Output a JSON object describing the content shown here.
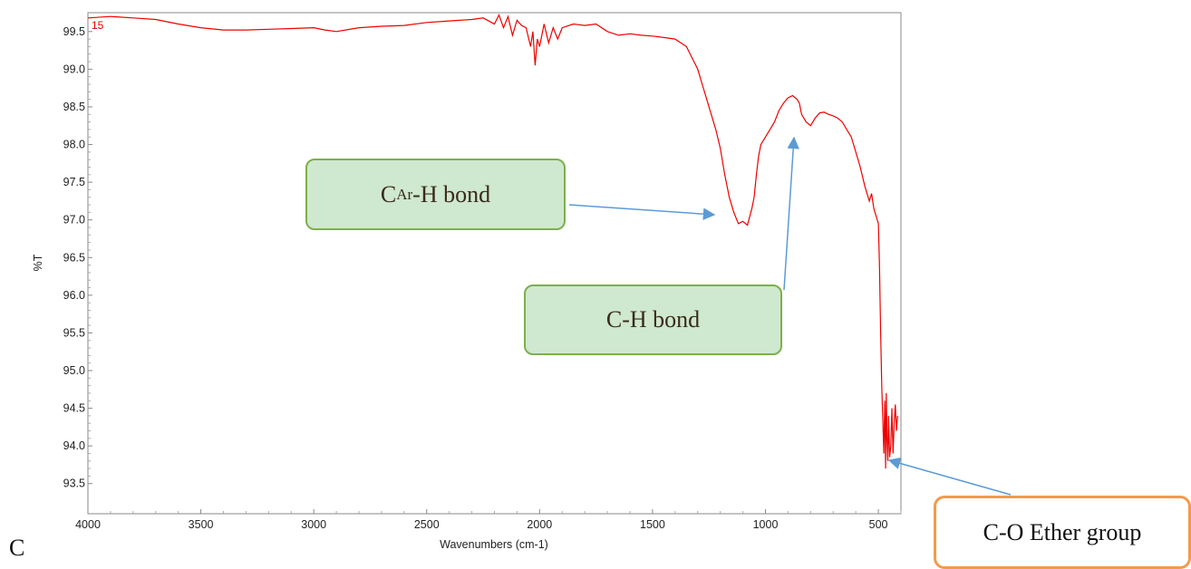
{
  "chart_data": {
    "type": "line",
    "trace_label": "15",
    "xlabel": "Wavenumbers (cm-1)",
    "ylabel": "%T",
    "xlim": [
      4000,
      400
    ],
    "ylim": [
      93.1,
      99.75
    ],
    "x_reversed": true,
    "x_ticks": [
      4000,
      3500,
      3000,
      2500,
      2000,
      1500,
      1000,
      500
    ],
    "y_ticks": [
      93.5,
      94.0,
      94.5,
      95.0,
      95.5,
      96.0,
      96.5,
      97.0,
      97.5,
      98.0,
      98.5,
      99.0,
      99.5
    ],
    "y_tick_labels": [
      "93.5",
      "94.0",
      "94.5",
      "95.0",
      "95.5",
      "96.0",
      "96.5",
      "97.0",
      "97.5",
      "98.0",
      "98.5",
      "99.0",
      "99.5"
    ],
    "grid": false,
    "series": [
      {
        "color": "#ee0000",
        "x": [
          4000,
          3900,
          3800,
          3700,
          3600,
          3500,
          3400,
          3300,
          3200,
          3100,
          3000,
          2950,
          2900,
          2800,
          2700,
          2600,
          2500,
          2400,
          2300,
          2250,
          2200,
          2180,
          2160,
          2140,
          2120,
          2100,
          2080,
          2060,
          2040,
          2030,
          2020,
          2010,
          2000,
          1980,
          1960,
          1940,
          1920,
          1900,
          1850,
          1800,
          1750,
          1700,
          1650,
          1600,
          1550,
          1500,
          1450,
          1400,
          1350,
          1300,
          1280,
          1260,
          1240,
          1220,
          1200,
          1180,
          1160,
          1140,
          1120,
          1100,
          1080,
          1060,
          1050,
          1040,
          1030,
          1020,
          1000,
          980,
          960,
          940,
          920,
          900,
          880,
          860,
          850,
          840,
          820,
          800,
          780,
          760,
          740,
          720,
          700,
          680,
          660,
          640,
          620,
          600,
          580,
          560,
          540,
          530,
          520,
          510,
          500,
          495,
          490,
          485,
          480,
          476,
          472,
          468,
          465,
          462,
          458,
          455,
          450,
          445,
          440,
          435,
          430,
          425,
          420,
          415
        ],
        "y": [
          99.68,
          99.7,
          99.68,
          99.66,
          99.6,
          99.55,
          99.52,
          99.52,
          99.53,
          99.54,
          99.55,
          99.52,
          99.5,
          99.55,
          99.57,
          99.58,
          99.62,
          99.64,
          99.66,
          99.68,
          99.6,
          99.72,
          99.55,
          99.7,
          99.45,
          99.65,
          99.58,
          99.55,
          99.3,
          99.5,
          99.05,
          99.4,
          99.3,
          99.6,
          99.35,
          99.55,
          99.4,
          99.55,
          99.6,
          99.58,
          99.6,
          99.5,
          99.45,
          99.47,
          99.45,
          99.44,
          99.42,
          99.4,
          99.3,
          99.0,
          98.8,
          98.6,
          98.4,
          98.2,
          97.95,
          97.6,
          97.3,
          97.1,
          96.95,
          96.98,
          96.93,
          97.15,
          97.3,
          97.6,
          97.85,
          98.0,
          98.1,
          98.2,
          98.3,
          98.45,
          98.55,
          98.62,
          98.65,
          98.6,
          98.55,
          98.4,
          98.3,
          98.25,
          98.35,
          98.42,
          98.43,
          98.4,
          98.38,
          98.35,
          98.3,
          98.2,
          98.1,
          97.9,
          97.7,
          97.45,
          97.25,
          97.35,
          97.15,
          97.05,
          96.95,
          96.4,
          95.5,
          94.8,
          94.3,
          93.9,
          94.6,
          93.7,
          94.7,
          94.1,
          93.8,
          94.4,
          93.85,
          94.0,
          94.5,
          93.9,
          94.3,
          94.55,
          94.2,
          94.4
        ]
      }
    ]
  },
  "annotations": {
    "car_h_prefix": "C",
    "car_h_sub": "Ar",
    "car_h_suffix": "-H bond",
    "ch_bond": "C-H bond",
    "co_ether": "C-O Ether group",
    "stray_letter": "C"
  }
}
